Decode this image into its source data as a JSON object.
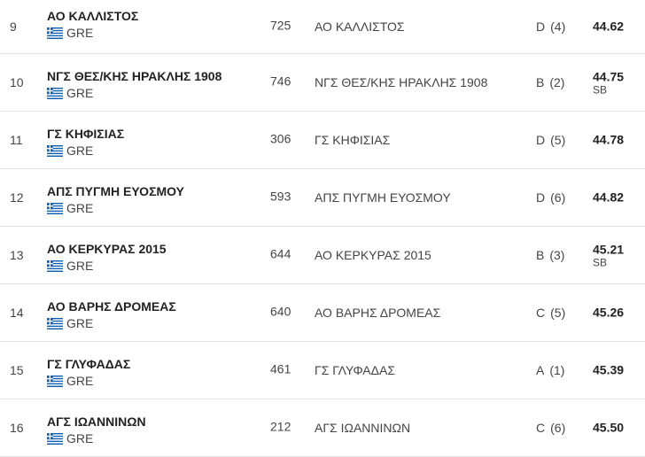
{
  "results": [
    {
      "rank": "9",
      "team": "ΑΟ ΚΑΛΛΙΣΤΟΣ",
      "nat": "GRE",
      "bib": "725",
      "team_repeat": "ΑΟ ΚΑΛΛΙΣΤΟΣ",
      "heat": "D",
      "lane": "(4)",
      "mark": "44.62",
      "note": ""
    },
    {
      "rank": "10",
      "team": "ΝΓΣ ΘΕΣ/ΚΗΣ ΗΡΑΚΛΗΣ 1908",
      "nat": "GRE",
      "bib": "746",
      "team_repeat": "ΝΓΣ ΘΕΣ/ΚΗΣ ΗΡΑΚΛΗΣ 1908",
      "heat": "B",
      "lane": "(2)",
      "mark": "44.75",
      "note": "SB"
    },
    {
      "rank": "11",
      "team": "ΓΣ ΚΗΦΙΣΙΑΣ",
      "nat": "GRE",
      "bib": "306",
      "team_repeat": "ΓΣ ΚΗΦΙΣΙΑΣ",
      "heat": "D",
      "lane": "(5)",
      "mark": "44.78",
      "note": ""
    },
    {
      "rank": "12",
      "team": "ΑΠΣ ΠΥΓΜΗ ΕΥΟΣΜΟΥ",
      "nat": "GRE",
      "bib": "593",
      "team_repeat": "ΑΠΣ ΠΥΓΜΗ ΕΥΟΣΜΟΥ",
      "heat": "D",
      "lane": "(6)",
      "mark": "44.82",
      "note": ""
    },
    {
      "rank": "13",
      "team": "ΑΟ ΚΕΡΚΥΡΑΣ 2015",
      "nat": "GRE",
      "bib": "644",
      "team_repeat": "ΑΟ ΚΕΡΚΥΡΑΣ 2015",
      "heat": "B",
      "lane": "(3)",
      "mark": "45.21",
      "note": "SB"
    },
    {
      "rank": "14",
      "team": "ΑΟ ΒΑΡΗΣ ΔΡΟΜΕΑΣ",
      "nat": "GRE",
      "bib": "640",
      "team_repeat": "ΑΟ ΒΑΡΗΣ ΔΡΟΜΕΑΣ",
      "heat": "C",
      "lane": "(5)",
      "mark": "45.26",
      "note": ""
    },
    {
      "rank": "15",
      "team": "ΓΣ ΓΛΥΦΑΔΑΣ",
      "nat": "GRE",
      "bib": "461",
      "team_repeat": "ΓΣ ΓΛΥΦΑΔΑΣ",
      "heat": "A",
      "lane": "(1)",
      "mark": "45.39",
      "note": ""
    },
    {
      "rank": "16",
      "team": "ΑΓΣ ΙΩΑΝΝΙΝΩΝ",
      "nat": "GRE",
      "bib": "212",
      "team_repeat": "ΑΓΣ ΙΩΑΝΝΙΝΩΝ",
      "heat": "C",
      "lane": "(6)",
      "mark": "45.50",
      "note": ""
    }
  ],
  "flag": {
    "name": "greece-flag-icon",
    "blue": "#0d5eaf",
    "white": "#ffffff"
  }
}
